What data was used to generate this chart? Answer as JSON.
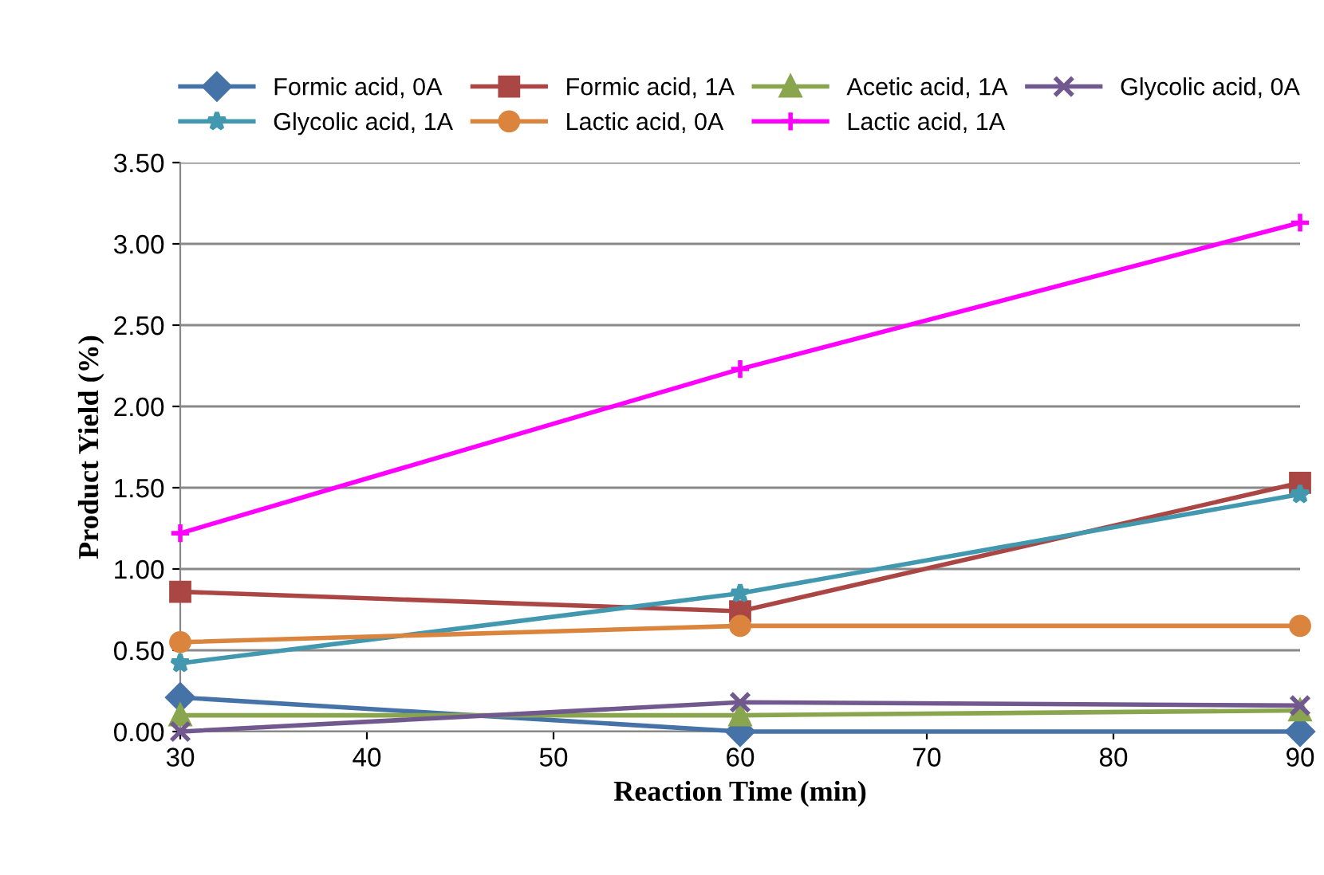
{
  "chart_data": {
    "type": "line",
    "xlabel": "Reaction Time (min)",
    "ylabel": "Product Yield (%)",
    "x": [
      30,
      60,
      90
    ],
    "xlim": [
      30,
      90
    ],
    "xticks": [
      30,
      40,
      50,
      60,
      70,
      80,
      90
    ],
    "ylim": [
      0,
      3.5
    ],
    "yticks": [
      {
        "value": 0,
        "label": "0.00"
      },
      {
        "value": 0.5,
        "label": "0.50"
      },
      {
        "value": 1,
        "label": "1.00"
      },
      {
        "value": 1.5,
        "label": "1.50"
      },
      {
        "value": 2,
        "label": "2.00"
      },
      {
        "value": 2.5,
        "label": "2.50"
      },
      {
        "value": 3,
        "label": "3.00"
      },
      {
        "value": 3.5,
        "label": "3.50"
      }
    ],
    "grid": "y",
    "legend": "top",
    "line_style": "solid",
    "series": [
      {
        "name": "Formic acid, 0A",
        "color": "#4572a7",
        "marker": "diamond",
        "values": [
          0.21,
          0.0,
          0.0
        ]
      },
      {
        "name": "Formic acid, 1A",
        "color": "#aa4643",
        "marker": "square",
        "values": [
          0.86,
          0.74,
          1.53
        ]
      },
      {
        "name": "Acetic acid, 1A",
        "color": "#89a54e",
        "marker": "triangle",
        "values": [
          0.1,
          0.1,
          0.13
        ]
      },
      {
        "name": "Glycolic acid, 0A",
        "color": "#71588f",
        "marker": "cross",
        "values": [
          0.0,
          0.18,
          0.16
        ]
      },
      {
        "name": "Glycolic acid, 1A",
        "color": "#4198af",
        "marker": "star",
        "values": [
          0.42,
          0.85,
          1.46
        ]
      },
      {
        "name": "Lactic acid, 0A",
        "color": "#db843d",
        "marker": "circle",
        "values": [
          0.55,
          0.65,
          0.65
        ]
      },
      {
        "name": "Lactic acid, 1A",
        "color": "#ff00ff",
        "marker": "plus",
        "values": [
          1.22,
          2.23,
          3.13
        ]
      }
    ]
  }
}
